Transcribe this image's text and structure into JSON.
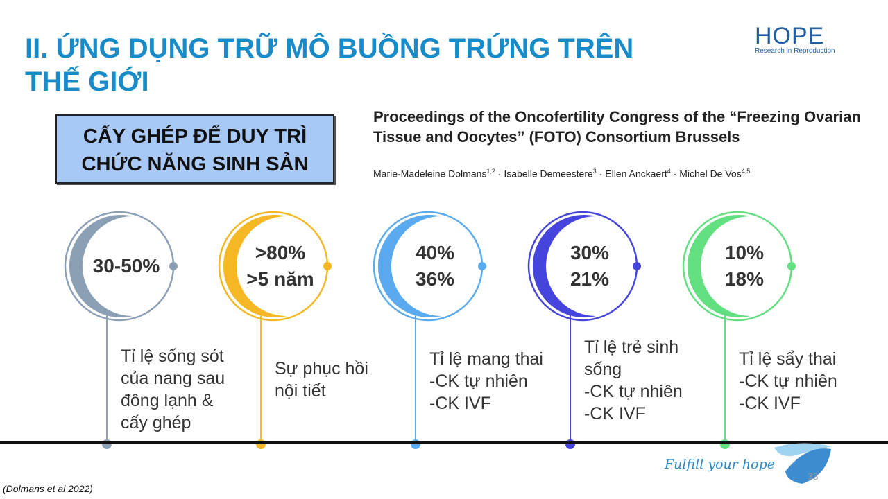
{
  "title": {
    "line1": "II. ỨNG DỤNG TRỮ MÔ BUỒNG TRỨNG TRÊN",
    "line2": "THẾ GIỚI"
  },
  "logo": {
    "word": "HOPE",
    "subtitle": "Research in Reproduction"
  },
  "box": {
    "line1": "CẤY GHÉP ĐỂ DUY TRÌ",
    "line2": "CHỨC NĂNG SINH SẢN"
  },
  "reference": {
    "title_line1": "Proceedings of the Oncofertility Congress of the “Freezing Ovarian",
    "title_line2": "Tissue and Oocytes” (FOTO) Consortium Brussels",
    "authors": [
      {
        "name": "Marie-Madeleine Dolmans",
        "sup": "1,2"
      },
      {
        "name": "Isabelle Demeestere",
        "sup": "3"
      },
      {
        "name": "Ellen Anckaert",
        "sup": "4"
      },
      {
        "name": "Michel De Vos",
        "sup": "4,5"
      }
    ],
    "separator": " · "
  },
  "milestones": [
    {
      "color": "#8ca0b5",
      "value_lines": [
        "30-50%"
      ],
      "desc_lines": [
        "Tỉ lệ sống sót",
        "của nang sau",
        "đông lạnh &",
        "cấy ghép"
      ]
    },
    {
      "color": "#f5b824",
      "value_lines": [
        ">80%",
        ">5 năm"
      ],
      "desc_lines": [
        "Sự phục hồi",
        "nội tiết"
      ]
    },
    {
      "color": "#5aaaf0",
      "value_lines": [
        "40%",
        "36%"
      ],
      "desc_lines": [
        "Tỉ lệ mang thai",
        "-CK tự nhiên",
        "-CK IVF"
      ]
    },
    {
      "color": "#4545dd",
      "value_lines": [
        "30%",
        "21%"
      ],
      "desc_lines": [
        "Tỉ lệ trẻ sinh",
        "sống",
        "-CK tự nhiên",
        "-CK IVF"
      ]
    },
    {
      "color": "#62df80",
      "value_lines": [
        "10%",
        "18%"
      ],
      "desc_lines": [
        "Tỉ lệ sẩy thai",
        "-CK tự nhiên",
        "-CK IVF"
      ]
    }
  ],
  "footer": {
    "reference": "(Dolmans et al 2022)",
    "slogan": "Fulfill your hope",
    "page_number": "33"
  }
}
